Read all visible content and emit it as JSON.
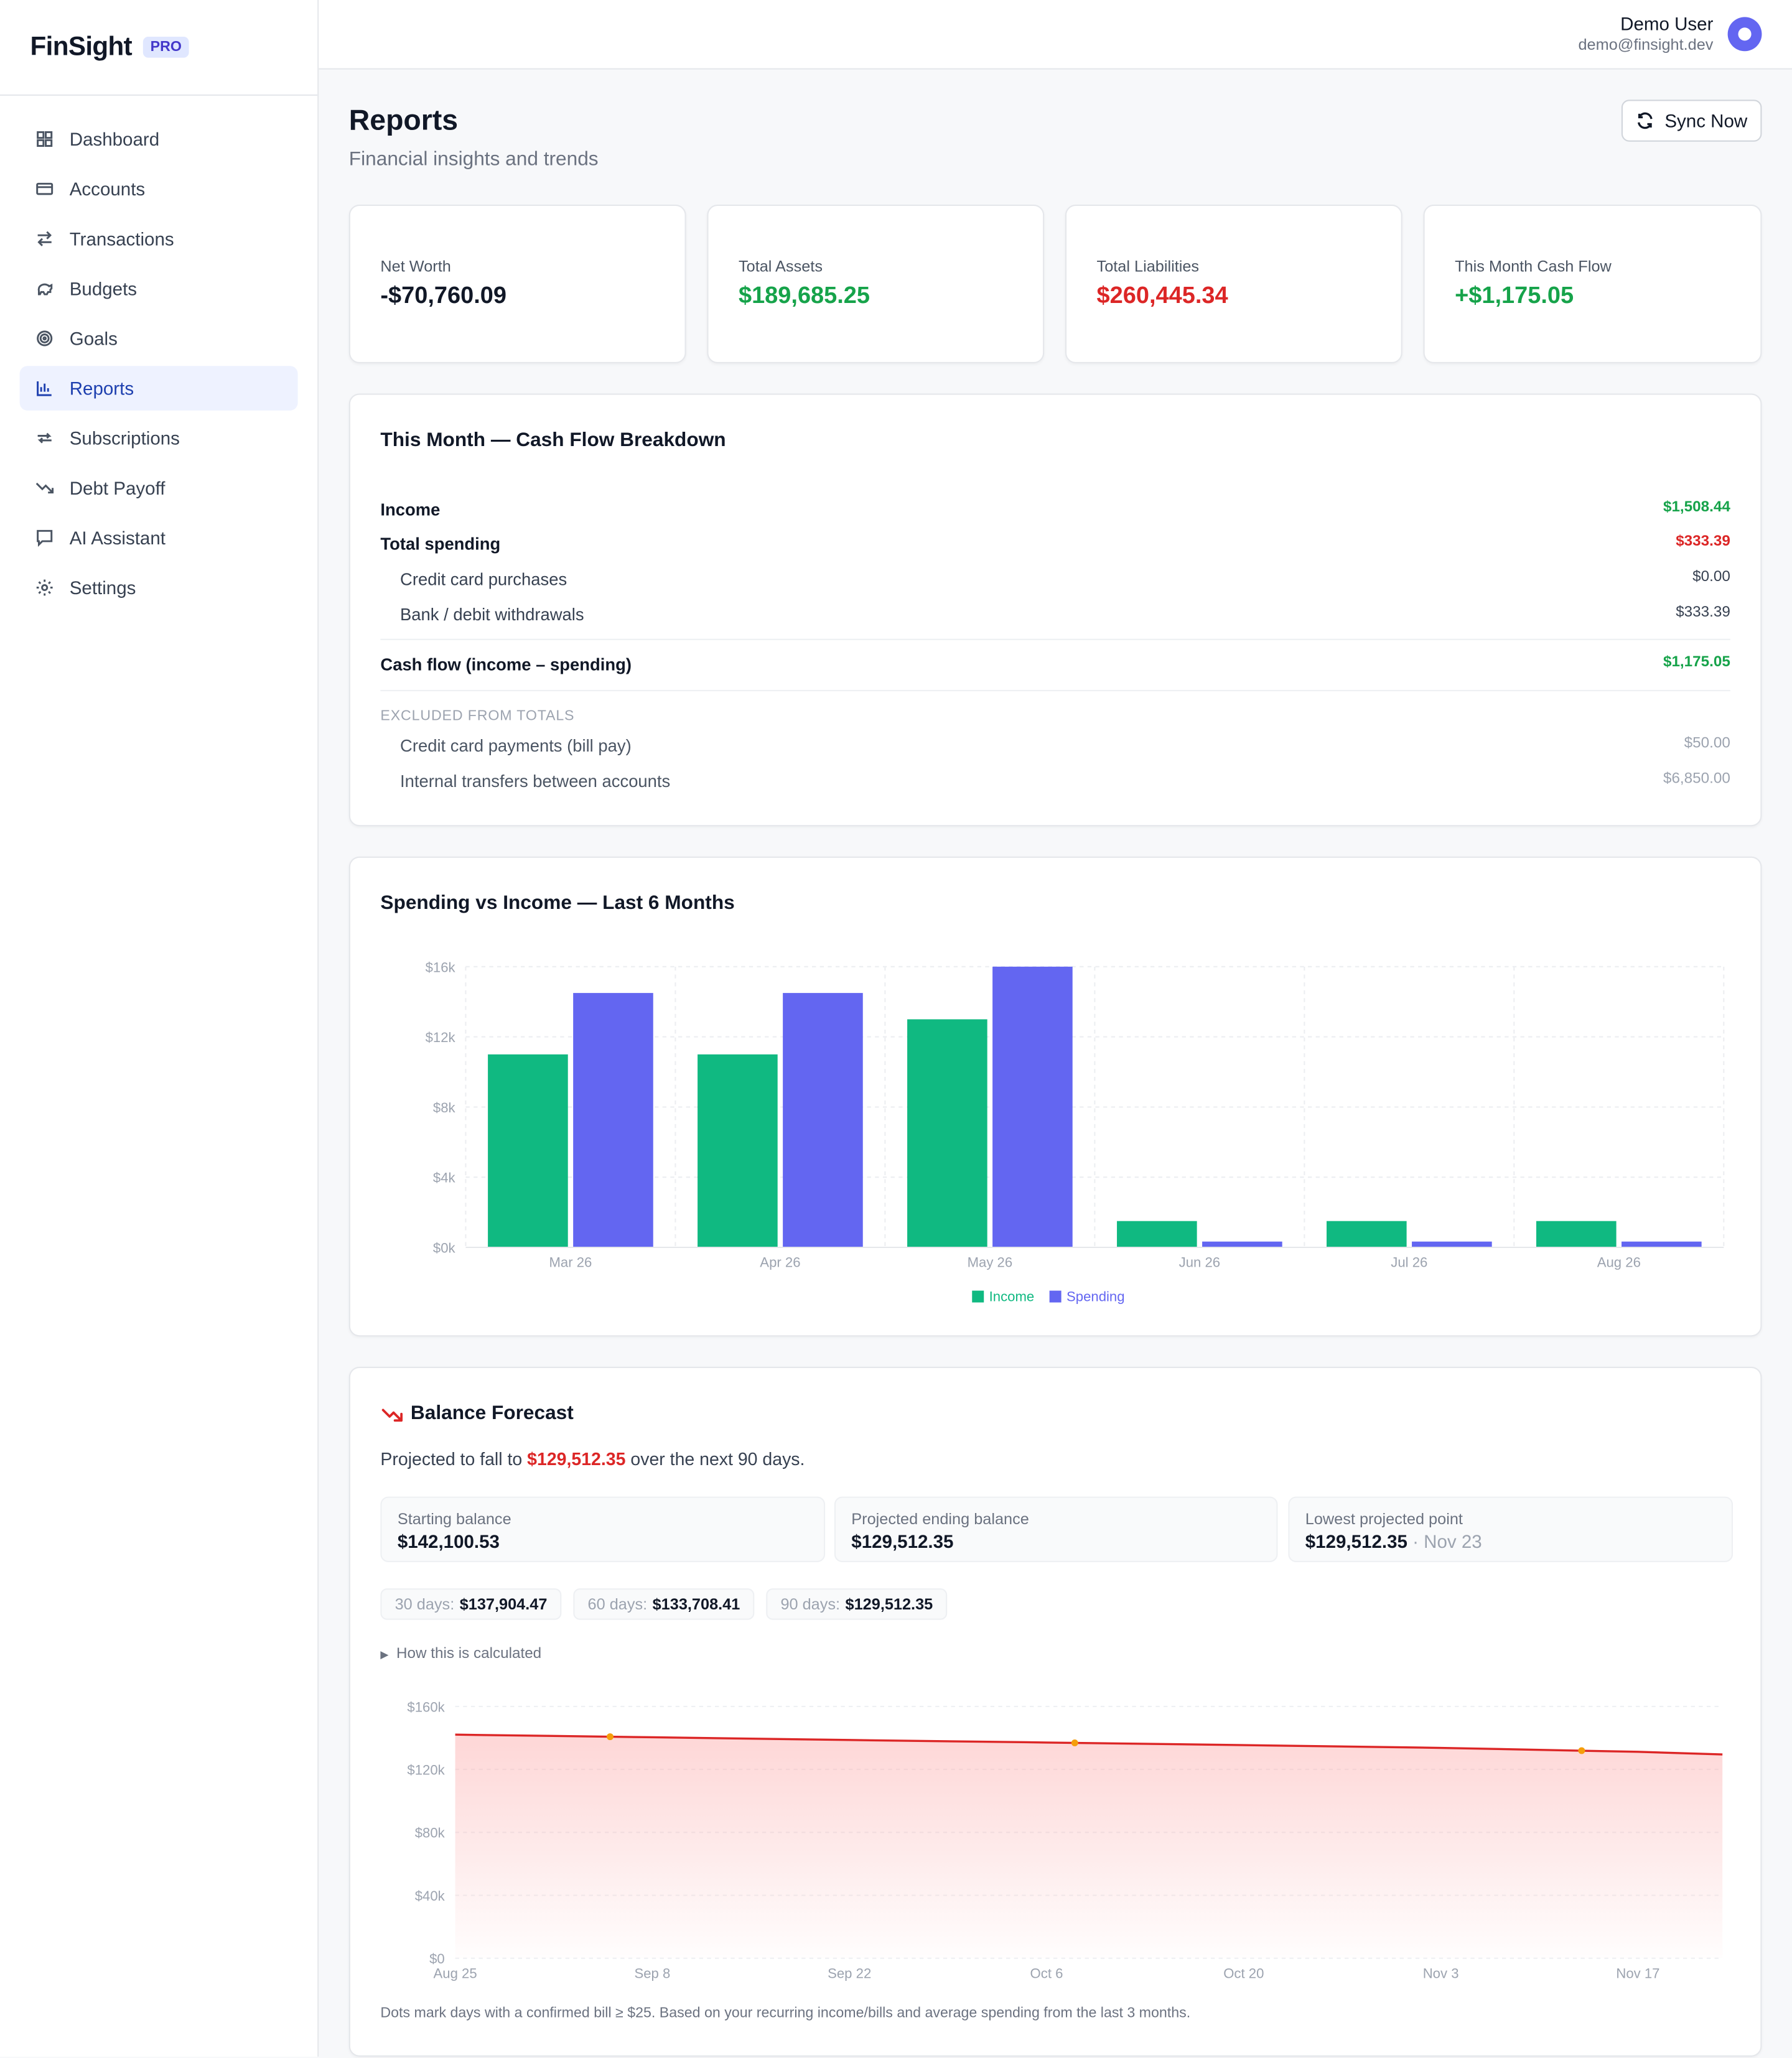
{
  "brand": {
    "name": "FinSight",
    "badge": "PRO"
  },
  "sidebar": {
    "items": [
      {
        "label": "Dashboard",
        "icon": "dashboard-icon"
      },
      {
        "label": "Accounts",
        "icon": "credit-card-icon"
      },
      {
        "label": "Transactions",
        "icon": "arrows-icon"
      },
      {
        "label": "Budgets",
        "icon": "piggy-bank-icon"
      },
      {
        "label": "Goals",
        "icon": "target-icon"
      },
      {
        "label": "Reports",
        "icon": "bar-chart-icon",
        "active": true
      },
      {
        "label": "Subscriptions",
        "icon": "repeat-icon"
      },
      {
        "label": "Debt Payoff",
        "icon": "trend-down-icon"
      },
      {
        "label": "AI Assistant",
        "icon": "chat-icon"
      },
      {
        "label": "Settings",
        "icon": "gear-icon"
      }
    ]
  },
  "user": {
    "name": "Demo User",
    "email": "demo@finsight.dev"
  },
  "header": {
    "title": "Reports",
    "subtitle": "Financial insights and trends",
    "sync_label": "Sync Now"
  },
  "stats": [
    {
      "label": "Net Worth",
      "value": "-$70,760.09",
      "color": "#111827"
    },
    {
      "label": "Total Assets",
      "value": "$189,685.25",
      "color": "#16a34a"
    },
    {
      "label": "Total Liabilities",
      "value": "$260,445.34",
      "color": "#dc2626"
    },
    {
      "label": "This Month Cash Flow",
      "value": "+$1,175.05",
      "color": "#16a34a"
    }
  ],
  "breakdown": {
    "title": "This Month — Cash Flow Breakdown",
    "income_label": "Income",
    "income_value": "$1,508.44",
    "spending_label": "Total spending",
    "spending_value": "$333.39",
    "cc_label": "Credit card purchases",
    "cc_value": "$0.00",
    "bank_label": "Bank / debit withdrawals",
    "bank_value": "$333.39",
    "cashflow_label": "Cash flow (income – spending)",
    "cashflow_value": "$1,175.05",
    "excluded_heading": "EXCLUDED FROM TOTALS",
    "billpay_label": "Credit card payments (bill pay)",
    "billpay_value": "$50.00",
    "transfers_label": "Internal transfers between accounts",
    "transfers_value": "$6,850.00"
  },
  "chart_data": [
    {
      "type": "bar",
      "title": "Spending vs Income — Last 6 Months",
      "categories": [
        "Mar 26",
        "Apr 26",
        "May 26",
        "Jun 26",
        "Jul 26",
        "Aug 26"
      ],
      "series": [
        {
          "name": "Income",
          "color": "#10b981",
          "values": [
            11000,
            11000,
            13000,
            1500,
            1500,
            1500
          ]
        },
        {
          "name": "Spending",
          "color": "#6366f1",
          "values": [
            14500,
            14500,
            16000,
            330,
            330,
            330
          ]
        }
      ],
      "yticks": [
        "$0k",
        "$4k",
        "$8k",
        "$12k",
        "$16k"
      ],
      "ylim": [
        0,
        16000
      ],
      "legend": "bottom-center"
    },
    {
      "type": "area",
      "title": "Balance Forecast",
      "x": [
        "Aug 25",
        "Sep 8",
        "Sep 22",
        "Oct 6",
        "Oct 20",
        "Nov 3",
        "Nov 17",
        "Nov 23"
      ],
      "values": [
        142100.53,
        140400,
        138700,
        137100,
        135400,
        133700,
        131200,
        129512.35
      ],
      "bill_days": [
        "Sep 5",
        "Oct 8",
        "Nov 13"
      ],
      "yticks": [
        "$0",
        "$40k",
        "$80k",
        "$120k",
        "$160k"
      ],
      "ylim": [
        0,
        160000
      ],
      "line_color": "#dc2626"
    }
  ],
  "forecast": {
    "title": "Balance Forecast",
    "summary_prefix": "Projected to fall to",
    "summary_value": "$129,512.35",
    "summary_suffix": "over the next 90 days.",
    "start_label": "Starting balance",
    "start_value": "$142,100.53",
    "end_label": "Projected ending balance",
    "end_value": "$129,512.35",
    "low_label": "Lowest projected point",
    "low_value": "$129,512.35",
    "low_date": "· Nov 23",
    "chips": [
      {
        "label": "30 days:",
        "value": "$137,904.47"
      },
      {
        "label": "60 days:",
        "value": "$133,708.41"
      },
      {
        "label": "90 days:",
        "value": "$129,512.35"
      }
    ],
    "details_label": "How this is calculated",
    "footnote": "Dots mark days with a confirmed bill ≥ $25. Based on your recurring income/bills and average spending from the last 3 months."
  }
}
